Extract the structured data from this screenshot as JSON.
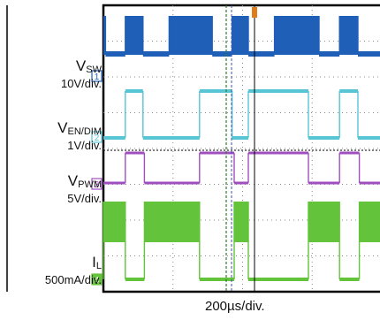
{
  "chart_data": {
    "type": "line",
    "time_base": "200µs/div.",
    "divisions": {
      "x": 10,
      "y": 8
    },
    "grid": true,
    "series": [
      {
        "name": "V",
        "name_sub": "SW",
        "scale": "10V/div.",
        "channel": "1",
        "color": "#1f5fb8",
        "high": 1,
        "low": 0,
        "transitions": [
          0.03,
          0.31,
          0.56,
          0.93,
          1.54,
          1.82,
          2.05,
          2.42,
          3.05,
          3.34,
          3.6
        ]
      },
      {
        "name": "V",
        "name_sub": "EN/DIM",
        "scale": "1V/div.",
        "channel": "2",
        "color": "#57c5d4",
        "high": 1,
        "low": 0,
        "transitions": [
          0.31,
          0.56,
          1.36,
          1.82,
          2.05,
          2.9,
          3.34,
          3.6
        ]
      },
      {
        "name": "V",
        "name_sub": "PWM",
        "scale": "5V/div.",
        "channel": "3",
        "color": "#a04fbf",
        "high": 1,
        "low": 0,
        "transitions": [
          0.31,
          0.58,
          1.36,
          1.85,
          2.05,
          2.9,
          3.34,
          3.62
        ]
      },
      {
        "name": "I",
        "name_sub": "L",
        "scale": "500mA/div.",
        "channel": "4",
        "color": "#63c33a",
        "high": 1,
        "low": 0,
        "transitions": [
          0.0,
          0.31,
          0.58,
          1.36,
          1.85,
          2.05,
          2.9,
          3.34,
          3.62
        ]
      }
    ]
  }
}
